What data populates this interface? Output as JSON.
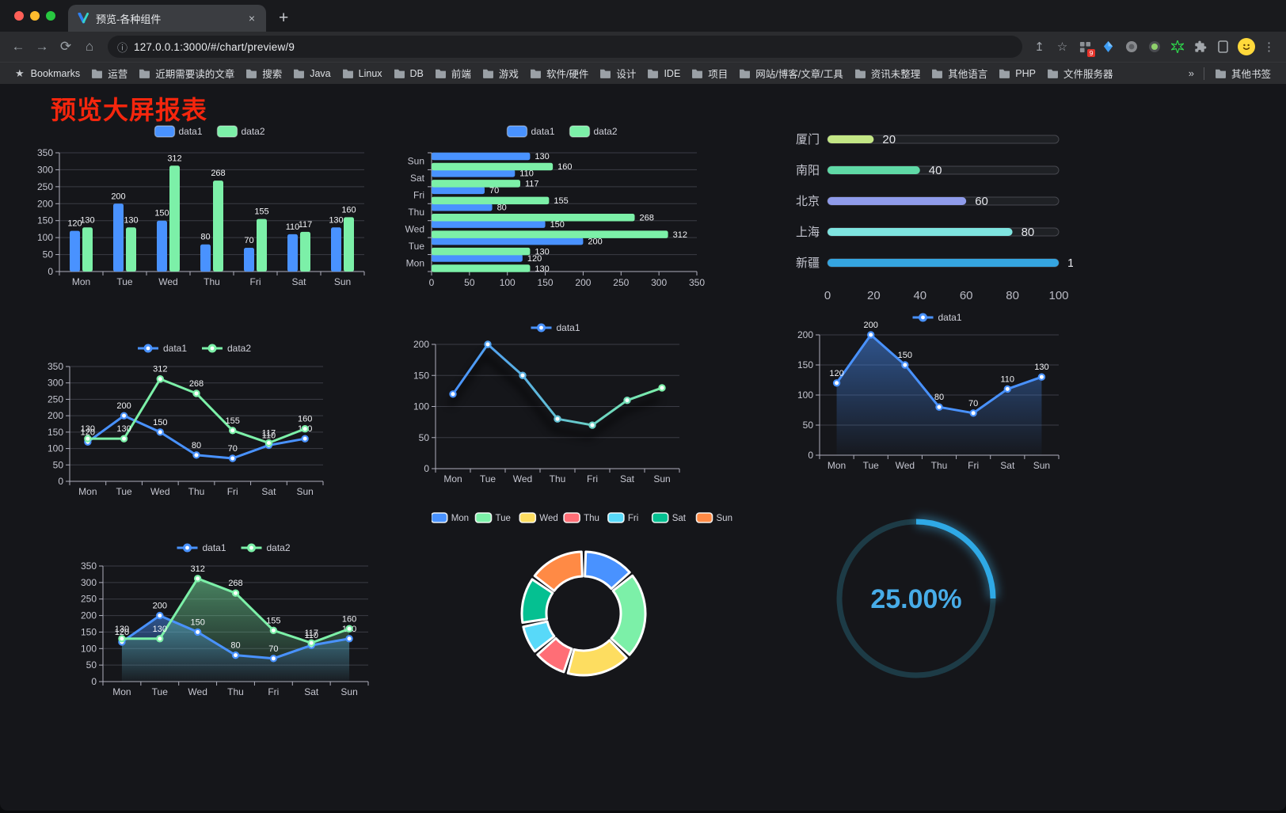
{
  "browser": {
    "tab_title": "预览-各种组件",
    "tab_close": "×",
    "new_tab": "+",
    "url": "127.0.0.1:3000/#/chart/preview/9",
    "extensions_badge": "9",
    "bookmarks_label": "Bookmarks",
    "bookmark_folders": [
      "运营",
      "近期需要读的文章",
      "搜索",
      "Java",
      "Linux",
      "DB",
      "前端",
      "游戏",
      "软件/硬件",
      "设计",
      "IDE",
      "项目",
      "网站/博客/文章/工具",
      "资讯未整理",
      "其他语言",
      "PHP",
      "文件服务器"
    ],
    "bookmarks_overflow": "»",
    "other_bookmarks": "其他书签"
  },
  "page": {
    "title": "预览大屏报表"
  },
  "theme": {
    "blue": "#4992ff",
    "green": "#7cf0a8",
    "yellow": "#fddd60",
    "red": "#ff6e76",
    "lightblue": "#58d9f9",
    "teal": "#05c091",
    "orange": "#ff8a45",
    "axis_label": "#c5c6d0",
    "split_line": "#3b3c45",
    "axis_line": "#aeafbc",
    "value_label": "#f2f3f6",
    "legend_text": "#cfd0d9",
    "title_red": "#f5260d"
  },
  "chart_data": [
    {
      "id": "bar-grouped",
      "type": "bar",
      "categories": [
        "Mon",
        "Tue",
        "Wed",
        "Thu",
        "Fri",
        "Sat",
        "Sun"
      ],
      "series": [
        {
          "name": "data1",
          "color": "#4992ff",
          "values": [
            120,
            200,
            150,
            80,
            70,
            110,
            130
          ]
        },
        {
          "name": "data2",
          "color": "#7cf0a8",
          "values": [
            130,
            130,
            312,
            268,
            155,
            117,
            160
          ]
        }
      ],
      "ylim": [
        0,
        350
      ],
      "yticks": [
        0,
        50,
        100,
        150,
        200,
        250,
        300,
        350
      ],
      "legend": [
        "data1",
        "data2"
      ],
      "legend_position": "top",
      "labels": true
    },
    {
      "id": "bar-horizontal",
      "type": "bar-horizontal",
      "categories": [
        "Mon",
        "Tue",
        "Wed",
        "Thu",
        "Fri",
        "Sat",
        "Sun"
      ],
      "series": [
        {
          "name": "data1",
          "color": "#4992ff",
          "values": [
            120,
            200,
            150,
            80,
            70,
            110,
            130
          ]
        },
        {
          "name": "data2",
          "color": "#7cf0a8",
          "values": [
            130,
            130,
            312,
            268,
            155,
            117,
            160
          ]
        }
      ],
      "xlim": [
        0,
        350
      ],
      "xticks": [
        0,
        50,
        100,
        150,
        200,
        250,
        300,
        350
      ],
      "legend": [
        "data1",
        "data2"
      ],
      "legend_position": "top",
      "labels": true
    },
    {
      "id": "progress-bars",
      "type": "progress",
      "max": 100,
      "xticks": [
        0,
        20,
        40,
        60,
        80,
        100
      ],
      "rows": [
        {
          "label": "厦门",
          "value": 20,
          "color": "#c3e685"
        },
        {
          "label": "南阳",
          "value": 40,
          "color": "#5fd9a6"
        },
        {
          "label": "北京",
          "value": 60,
          "color": "#8f9bea"
        },
        {
          "label": "上海",
          "value": 80,
          "color": "#7fe4e0"
        },
        {
          "label": "新疆",
          "value": 100,
          "color": "#35a5e0"
        }
      ]
    },
    {
      "id": "line-dual",
      "type": "line",
      "categories": [
        "Mon",
        "Tue",
        "Wed",
        "Thu",
        "Fri",
        "Sat",
        "Sun"
      ],
      "series": [
        {
          "name": "data1",
          "color": "#4992ff",
          "values": [
            120,
            200,
            150,
            80,
            70,
            110,
            130
          ]
        },
        {
          "name": "data2",
          "color": "#7cf0a8",
          "values": [
            130,
            130,
            312,
            268,
            155,
            117,
            160
          ]
        }
      ],
      "ylim": [
        0,
        350
      ],
      "yticks": [
        0,
        50,
        100,
        150,
        200,
        250,
        300,
        350
      ],
      "legend": [
        "data1",
        "data2"
      ],
      "legend_position": "top",
      "labels": true
    },
    {
      "id": "line-gradient",
      "type": "line-gradient",
      "categories": [
        "Mon",
        "Tue",
        "Wed",
        "Thu",
        "Fri",
        "Sat",
        "Sun"
      ],
      "series": [
        {
          "name": "data1",
          "gradient": [
            "#4992ff",
            "#7cf0a8"
          ],
          "values": [
            120,
            200,
            150,
            80,
            70,
            110,
            130
          ]
        }
      ],
      "ylim": [
        0,
        200
      ],
      "yticks": [
        0,
        50,
        100,
        150,
        200
      ],
      "legend": [
        "data1"
      ],
      "legend_position": "top",
      "labels": false,
      "shadow": true
    },
    {
      "id": "area-single",
      "type": "area",
      "categories": [
        "Mon",
        "Tue",
        "Wed",
        "Thu",
        "Fri",
        "Sat",
        "Sun"
      ],
      "series": [
        {
          "name": "data1",
          "color": "#4992ff",
          "area": true,
          "values": [
            120,
            200,
            150,
            80,
            70,
            110,
            130
          ]
        }
      ],
      "ylim": [
        0,
        200
      ],
      "yticks": [
        0,
        50,
        100,
        150,
        200
      ],
      "legend": [
        "data1"
      ],
      "legend_position": "top",
      "labels": true
    },
    {
      "id": "area-dual",
      "type": "area",
      "categories": [
        "Mon",
        "Tue",
        "Wed",
        "Thu",
        "Fri",
        "Sat",
        "Sun"
      ],
      "series": [
        {
          "name": "data1",
          "color": "#4992ff",
          "area": true,
          "values": [
            120,
            200,
            150,
            80,
            70,
            110,
            130
          ]
        },
        {
          "name": "data2",
          "color": "#7cf0a8",
          "area": true,
          "values": [
            130,
            130,
            312,
            268,
            155,
            117,
            160
          ]
        }
      ],
      "ylim": [
        0,
        350
      ],
      "yticks": [
        0,
        50,
        100,
        150,
        200,
        250,
        300,
        350
      ],
      "legend": [
        "data1",
        "data2"
      ],
      "legend_position": "top",
      "labels": true
    },
    {
      "id": "pie-donut",
      "type": "pie",
      "legend_position": "top",
      "items": [
        {
          "name": "Mon",
          "value": 120,
          "color": "#4992ff"
        },
        {
          "name": "Tue",
          "value": 200,
          "color": "#7cf0a8"
        },
        {
          "name": "Wed",
          "value": 150,
          "color": "#fddd60"
        },
        {
          "name": "Thu",
          "value": 80,
          "color": "#ff6e76"
        },
        {
          "name": "Fri",
          "value": 70,
          "color": "#58d9f9"
        },
        {
          "name": "Sat",
          "value": 110,
          "color": "#05c091"
        },
        {
          "name": "Sun",
          "value": 130,
          "color": "#ff8a45"
        }
      ]
    },
    {
      "id": "gauge",
      "type": "gauge",
      "value": 25,
      "max": 100,
      "label": "25.00%",
      "color": "#2fa9e6",
      "glow": "#46c4ff",
      "track_color": "#1d3b46",
      "text_color": "#47ace8"
    }
  ]
}
